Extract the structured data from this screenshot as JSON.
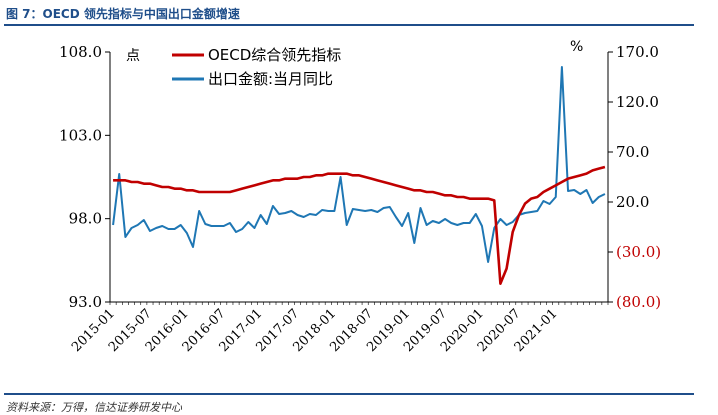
{
  "figure": {
    "title": "图 7：OECD 领先指标与中国出口金额增速",
    "source": "资料来源：万得，信达证券研发中心"
  },
  "colors": {
    "oecd": "#c00000",
    "export": "#1f77b4",
    "right_axis_negative": "#c00000"
  },
  "chart_data": {
    "type": "line",
    "x": [
      "2015-01",
      "2015-02",
      "2015-03",
      "2015-04",
      "2015-05",
      "2015-06",
      "2015-07",
      "2015-08",
      "2015-09",
      "2015-10",
      "2015-11",
      "2015-12",
      "2016-01",
      "2016-02",
      "2016-03",
      "2016-04",
      "2016-05",
      "2016-06",
      "2016-07",
      "2016-08",
      "2016-09",
      "2016-10",
      "2016-11",
      "2016-12",
      "2017-01",
      "2017-02",
      "2017-03",
      "2017-04",
      "2017-05",
      "2017-06",
      "2017-07",
      "2017-08",
      "2017-09",
      "2017-10",
      "2017-11",
      "2017-12",
      "2018-01",
      "2018-02",
      "2018-03",
      "2018-04",
      "2018-05",
      "2018-06",
      "2018-07",
      "2018-08",
      "2018-09",
      "2018-10",
      "2018-11",
      "2018-12",
      "2019-01",
      "2019-02",
      "2019-03",
      "2019-04",
      "2019-05",
      "2019-06",
      "2019-07",
      "2019-08",
      "2019-09",
      "2019-10",
      "2019-11",
      "2019-12",
      "2020-01",
      "2020-02",
      "2020-03",
      "2020-04",
      "2020-05",
      "2020-06",
      "2020-07",
      "2020-08",
      "2020-09",
      "2020-10",
      "2020-11",
      "2020-12",
      "2021-01",
      "2021-02",
      "2021-03",
      "2021-04",
      "2021-05",
      "2021-06",
      "2021-07",
      "2021-08",
      "2021-09"
    ],
    "x_tick_labels": [
      "2015-01",
      "2015-07",
      "2016-01",
      "2016-07",
      "2017-01",
      "2017-07",
      "2018-01",
      "2018-07",
      "2019-01",
      "2019-07",
      "2020-01",
      "2020-07",
      "2021-01"
    ],
    "left_axis": {
      "unit": "点",
      "min": 93.0,
      "max": 108.0,
      "ticks": [
        "93.0",
        "98.0",
        "103.0",
        "108.0"
      ]
    },
    "right_axis": {
      "unit": "%",
      "min": -80,
      "max": 170,
      "ticks": [
        {
          "v": -80,
          "label": "(80.0)"
        },
        {
          "v": -30,
          "label": "(30.0)"
        },
        {
          "v": 20,
          "label": "20.0"
        },
        {
          "v": 70,
          "label": "70.0"
        },
        {
          "v": 120,
          "label": "120.0"
        },
        {
          "v": 170,
          "label": "170.0"
        }
      ]
    },
    "legend": {
      "position": "top-left"
    },
    "series": [
      {
        "name": "OECD综合领先指标",
        "axis": "left",
        "values": [
          100.3,
          100.3,
          100.3,
          100.2,
          100.2,
          100.1,
          100.1,
          100.0,
          99.9,
          99.9,
          99.8,
          99.8,
          99.7,
          99.7,
          99.6,
          99.6,
          99.6,
          99.6,
          99.6,
          99.6,
          99.7,
          99.8,
          99.9,
          100.0,
          100.1,
          100.2,
          100.3,
          100.3,
          100.4,
          100.4,
          100.4,
          100.5,
          100.5,
          100.6,
          100.6,
          100.7,
          100.7,
          100.7,
          100.7,
          100.6,
          100.6,
          100.5,
          100.4,
          100.3,
          100.2,
          100.1,
          100.0,
          99.9,
          99.8,
          99.7,
          99.7,
          99.6,
          99.6,
          99.5,
          99.4,
          99.4,
          99.3,
          99.3,
          99.2,
          99.2,
          99.2,
          99.2,
          99.1,
          94.1,
          95.0,
          97.2,
          98.2,
          98.9,
          99.2,
          99.3,
          99.6,
          99.8,
          100.0,
          100.2,
          100.4,
          100.5,
          100.6,
          100.7,
          100.9,
          101.0,
          101.1
        ]
      },
      {
        "name": "出口金额:当月同比",
        "axis": "right",
        "values": [
          -3,
          48,
          -15,
          -6,
          -3,
          2,
          -9,
          -6,
          -4,
          -7,
          -7,
          -3,
          -11,
          -25,
          11,
          -2,
          -4,
          -4,
          -4,
          -1,
          -10,
          -7,
          0,
          -6,
          7,
          -2,
          16,
          8,
          9,
          11,
          7,
          5,
          8,
          7,
          12,
          11,
          11,
          45,
          -3,
          13,
          12,
          11,
          12,
          10,
          14,
          15,
          5,
          -4,
          9,
          -21,
          14,
          -3,
          1,
          -1,
          3,
          -1,
          -3,
          -1,
          -1,
          8,
          -4,
          -40,
          -6,
          3,
          -3,
          0,
          7,
          9,
          10,
          11,
          21,
          18,
          25,
          155,
          31,
          32,
          28,
          32,
          19,
          25,
          28
        ]
      }
    ]
  }
}
